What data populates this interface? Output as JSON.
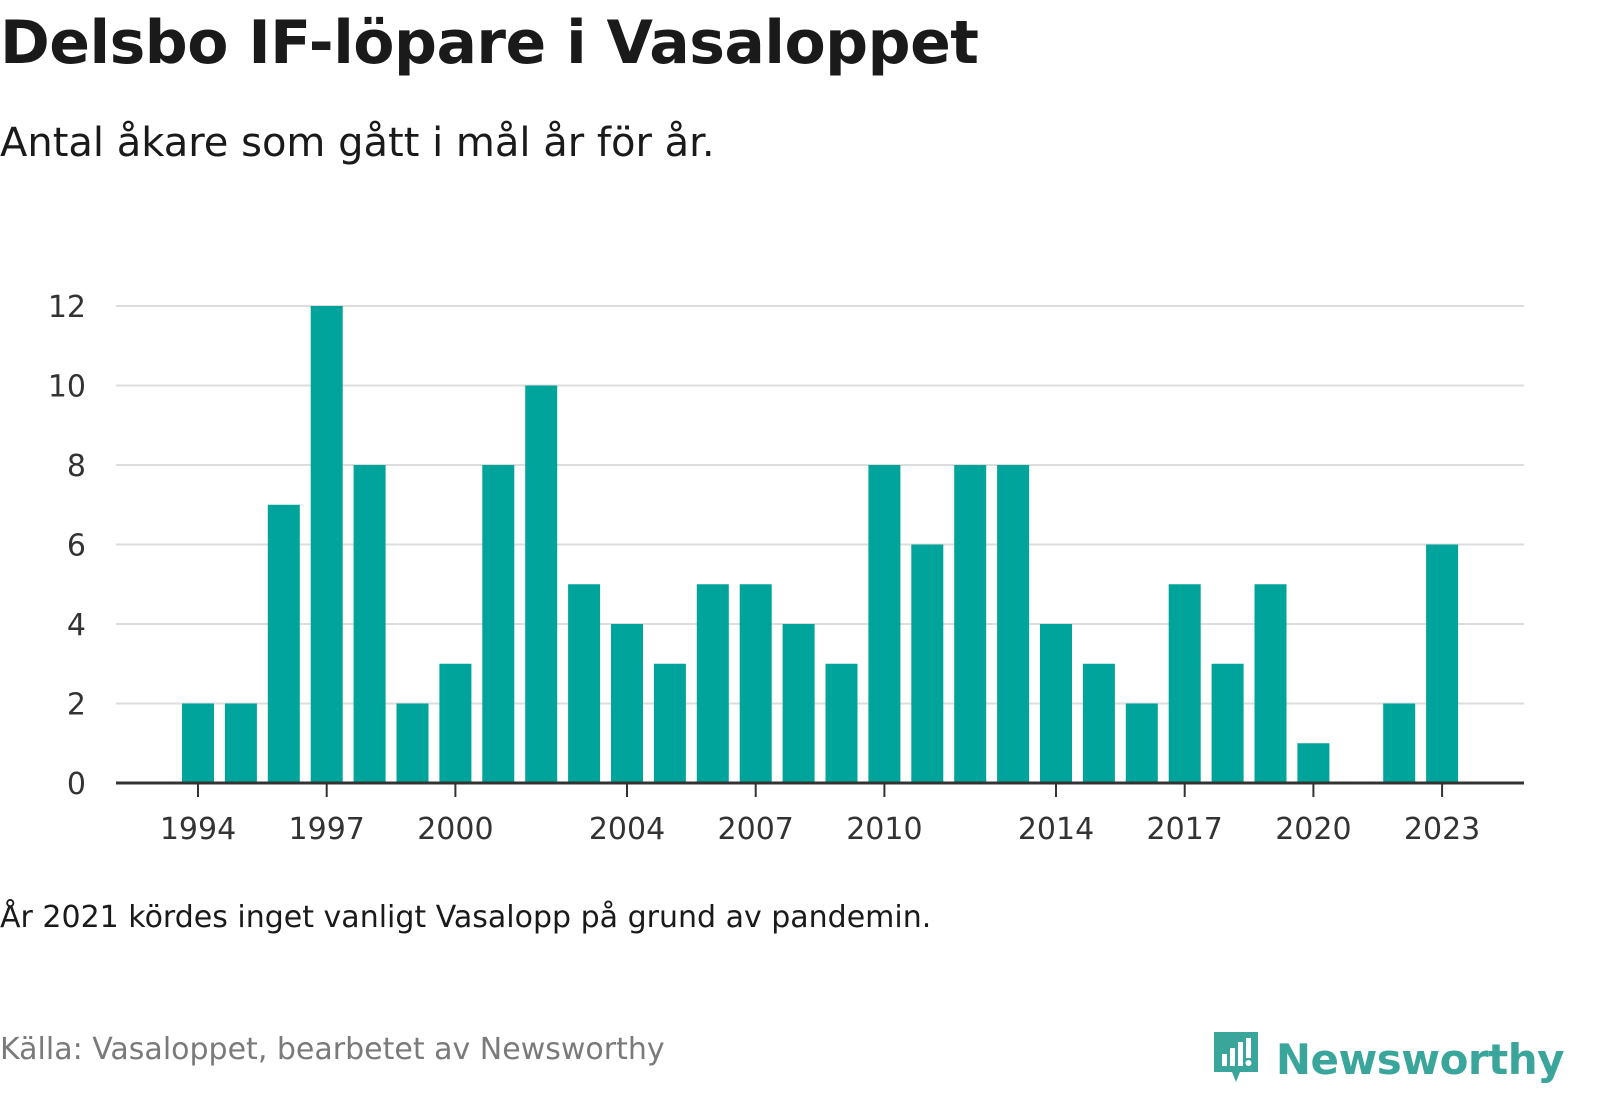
{
  "title": "Delsbo IF-löpare i Vasaloppet",
  "subtitle": "Antal åkare som gått i mål år för år.",
  "note": "År 2021 kördes inget vanligt Vasalopp på grund av pandemin.",
  "source": "Källa: Vasaloppet, bearbetet av Newsworthy",
  "brand": {
    "name": "Newsworthy",
    "color": "#3aa69b",
    "icon": "newsworthy-logo-icon"
  },
  "chart_data": {
    "type": "bar",
    "categories": [
      1994,
      1995,
      1996,
      1997,
      1998,
      1999,
      2000,
      2001,
      2002,
      2003,
      2004,
      2005,
      2006,
      2007,
      2008,
      2009,
      2010,
      2011,
      2012,
      2013,
      2014,
      2015,
      2016,
      2017,
      2018,
      2019,
      2020,
      2021,
      2022,
      2023
    ],
    "values": [
      2,
      2,
      7,
      12,
      8,
      2,
      3,
      8,
      10,
      5,
      4,
      3,
      5,
      5,
      4,
      3,
      8,
      6,
      8,
      8,
      4,
      3,
      2,
      5,
      3,
      5,
      1,
      null,
      2,
      6
    ],
    "x_ticks": [
      1994,
      1997,
      2000,
      2004,
      2007,
      2010,
      2014,
      2017,
      2020,
      2023
    ],
    "y_ticks": [
      0,
      2,
      4,
      6,
      8,
      10,
      12
    ],
    "ylim": [
      0,
      12
    ],
    "grid": true,
    "bar_color": "#00a49a",
    "grid_color": "#dddddd",
    "axis_color": "#333333"
  }
}
